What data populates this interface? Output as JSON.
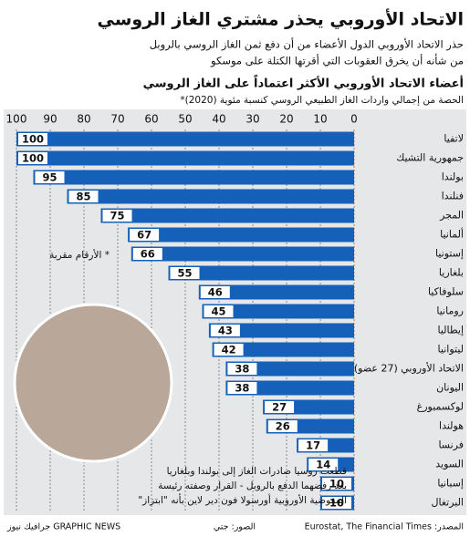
{
  "chart_data": {
    "type": "bar",
    "orientation": "horizontal",
    "title": "الاتحاد الأوروبي يحذر مشتري الغاز الروسي",
    "subtitle": [
      "حذر الاتحاد الأوروبي الدول الأعضاء من أن دفع ثمن الغاز الروسي بالروبل",
      "من شأنه أن يخرق العقوبات التي أقرتها الكتلة على موسكو"
    ],
    "chart_title": "أعضاء الاتحاد الأوروبي الأكثر اعتماداً على الغاز الروسي",
    "chart_subtitle": "الحصة من إجمالي واردات الغاز الطبيعي الروسي كنسبة مئوية (2020)*",
    "note": "* الأرقام مقربة",
    "annotation": [
      "قطعت روسيا صادرات الغاز إلى بولندا وبلغاريا",
      "بعد رفضهما الدفع بالروبل - القرار وصفته رئيسة",
      "المفوضية الأوروبية أورسولا فون دير لاين بأنه \"ابتزاز\""
    ],
    "categories": [
      "لاتفيا",
      "جمهورية التشيك",
      "بولندا",
      "فنلندا",
      "المجر",
      "ألمانيا",
      "إستونيا",
      "بلغاريا",
      "سلوفاكيا",
      "رومانيا",
      "إيطاليا",
      "ليتوانيا",
      "الاتحاد الأوروبي (27 عضو)",
      "اليونان",
      "لوكسمبورغ",
      "هولندا",
      "فرنسا",
      "السويد",
      "إسبانيا",
      "البرتغال"
    ],
    "values": [
      100,
      100,
      95,
      85,
      75,
      67,
      66,
      55,
      46,
      45,
      43,
      42,
      38,
      38,
      27,
      26,
      17,
      14,
      10,
      10
    ],
    "color": "#1560b8",
    "xlim": [
      0,
      100
    ],
    "xticks": [
      0,
      10,
      20,
      30,
      40,
      50,
      60,
      70,
      80,
      90,
      100
    ],
    "x_reversed": true,
    "grid": true,
    "source": "المصدر: Eurostat, The Financial Times",
    "photo_credit": "الصور: جتي",
    "brand": "GRAPHIC NEWS جرافيك نيوز"
  }
}
